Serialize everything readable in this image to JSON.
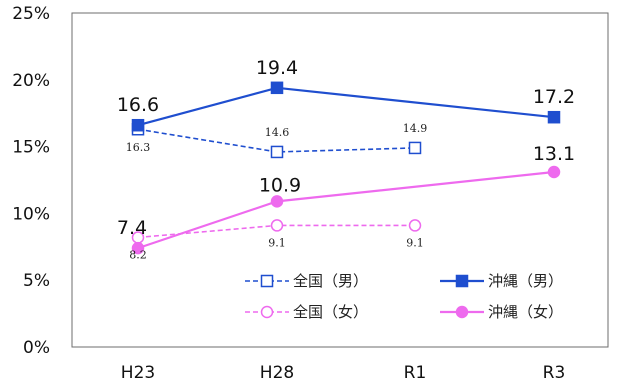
{
  "chart_data": {
    "type": "line",
    "categories": [
      "H23",
      "H28",
      "R1",
      "R3"
    ],
    "y_ticks": [
      "0%",
      "5%",
      "10%",
      "15%",
      "20%",
      "25%"
    ],
    "ylim": [
      0,
      25
    ],
    "grid": false,
    "legend_position": "bottom-inside",
    "series": [
      {
        "name": "全国（男）",
        "values": [
          16.3,
          14.6,
          14.9,
          null
        ],
        "labels": [
          "16.3",
          "14.6",
          "14.9",
          null
        ],
        "color": "#1f4ecf",
        "dash": true,
        "marker": "square-open",
        "label_size": "small"
      },
      {
        "name": "沖縄（男）",
        "values": [
          16.6,
          19.4,
          null,
          17.2
        ],
        "labels": [
          "16.6",
          "19.4",
          null,
          "17.2"
        ],
        "color": "#1f4ecf",
        "dash": false,
        "marker": "square-filled",
        "label_size": "big"
      },
      {
        "name": "全国（女）",
        "values": [
          8.2,
          9.1,
          9.1,
          null
        ],
        "labels": [
          "8.2",
          "9.1",
          "9.1",
          null
        ],
        "color": "#ee6aee",
        "dash": true,
        "marker": "circle-open",
        "label_size": "small"
      },
      {
        "name": "沖縄（女）",
        "values": [
          7.4,
          10.9,
          null,
          13.1
        ],
        "labels": [
          "7.4",
          "10.9",
          null,
          "13.1"
        ],
        "color": "#ee6aee",
        "dash": false,
        "marker": "circle-filled",
        "label_size": "big"
      }
    ]
  }
}
